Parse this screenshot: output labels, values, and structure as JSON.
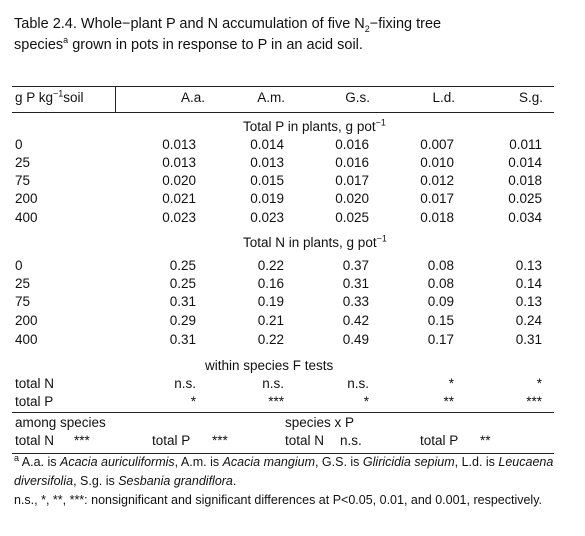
{
  "title": {
    "text1": "Table 2.4.  Whole−plant P and N accumulation of five N",
    "sub": "2",
    "text2": "−fixing tree",
    "text3": "species",
    "sup": "a",
    "text4": " grown in pots in response to P in an acid soil."
  },
  "table": {
    "header": {
      "stub": "g P kg",
      "stub_sup": "−1",
      "stub_end": "soil",
      "columns": [
        "A.a.",
        "A.m.",
        "G.s.",
        "L.d.",
        "S.g."
      ]
    },
    "sections": [
      {
        "heading": "Total P in plants, g pot",
        "heading_sup": "−1",
        "rows": [
          [
            "0",
            "0.013",
            "0.014",
            "0.016",
            "0.007",
            "0.011"
          ],
          [
            "25",
            "0.013",
            "0.013",
            "0.016",
            "0.010",
            "0.014"
          ],
          [
            "75",
            "0.020",
            "0.015",
            "0.017",
            "0.012",
            "0.018"
          ],
          [
            "200",
            "0.021",
            "0.019",
            "0.020",
            "0.017",
            "0.025"
          ],
          [
            "400",
            "0.023",
            "0.023",
            "0.025",
            "0.018",
            "0.034"
          ]
        ]
      },
      {
        "heading": "Total N in plants, g pot",
        "heading_sup": "−1",
        "rows": [
          [
            "0",
            "0.25",
            "0.22",
            "0.37",
            "0.08",
            "0.13"
          ],
          [
            "25",
            "0.25",
            "0.16",
            "0.31",
            "0.08",
            "0.14"
          ],
          [
            "75",
            "0.31",
            "0.19",
            "0.33",
            "0.09",
            "0.13"
          ],
          [
            "200",
            "0.29",
            "0.21",
            "0.42",
            "0.15",
            "0.24"
          ],
          [
            "400",
            "0.31",
            "0.22",
            "0.49",
            "0.17",
            "0.31"
          ]
        ]
      },
      {
        "heading": "within species F tests",
        "rows": [
          [
            "total N",
            "n.s.",
            "n.s.",
            "n.s.",
            "*",
            "*"
          ],
          [
            "total P",
            "*",
            "***",
            "*",
            "**",
            "***"
          ]
        ]
      }
    ],
    "among": {
      "heading": "among species",
      "total_n": "total N",
      "total_n_sig": "***",
      "total_p": "total P",
      "total_p_sig": "***"
    },
    "interaction": {
      "heading": "species x P",
      "total_n": "total N",
      "total_n_sig": "n.s.",
      "total_p": "total P",
      "total_p_sig": "**"
    }
  },
  "footnotes": {
    "marker": "a",
    "parts": [
      " A.a. is ",
      "Acacia auriculiformis",
      ", A.m. is ",
      "Acacia mangium",
      ", G.S. is ",
      "Gliricidia sepium",
      ", L.d. is ",
      "Leucaena diversifolia",
      ", S.g. is ",
      "Sesbania grandiflora",
      "."
    ],
    "significance": "n.s., *, **, ***:  nonsignificant and significant differences at P<0.05, 0.01, and 0.001, respectively."
  }
}
